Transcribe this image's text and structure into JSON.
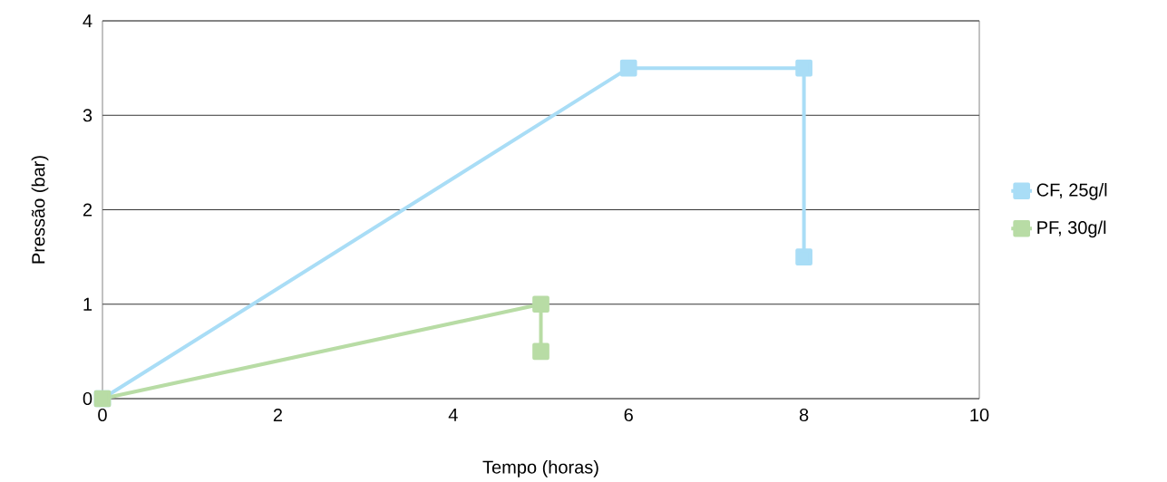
{
  "chart_data": {
    "type": "line",
    "xlabel": "Tempo (horas)",
    "ylabel": "Pressão (bar)",
    "xlim": [
      0,
      10
    ],
    "ylim": [
      0,
      4
    ],
    "xticks": [
      0,
      2,
      4,
      6,
      8,
      10
    ],
    "yticks": [
      0,
      1,
      2,
      3,
      4
    ],
    "grid": "y",
    "legend": "right",
    "marker": "square",
    "line_style": "solid",
    "series": [
      {
        "name": "CF, 25g/l",
        "color": "#a9ddf6",
        "x": [
          0,
          6,
          8,
          8
        ],
        "values": [
          0,
          3.5,
          3.5,
          1.5
        ]
      },
      {
        "name": "PF, 30g/l",
        "color": "#b8dca5",
        "x": [
          0,
          5,
          5
        ],
        "values": [
          0,
          1,
          0.5
        ]
      }
    ]
  }
}
